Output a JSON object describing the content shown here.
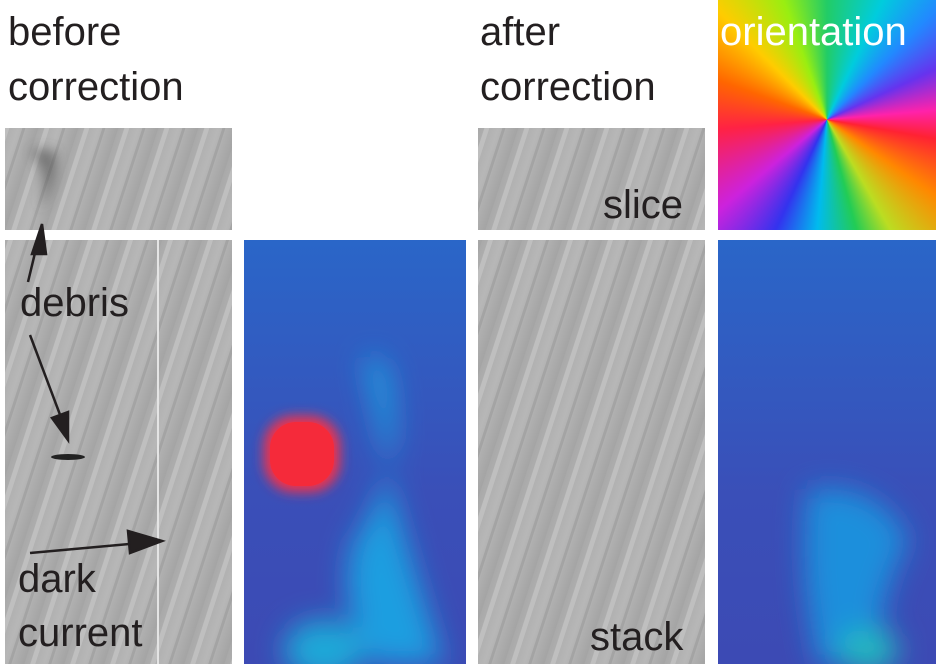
{
  "headings": {
    "before": [
      "before",
      "correction"
    ],
    "after": [
      "after",
      "correction"
    ],
    "orientation": "orientation"
  },
  "labels": {
    "slice": "slice",
    "debris": "debris",
    "dark_current": [
      "dark",
      "current"
    ],
    "stack": "stack"
  }
}
